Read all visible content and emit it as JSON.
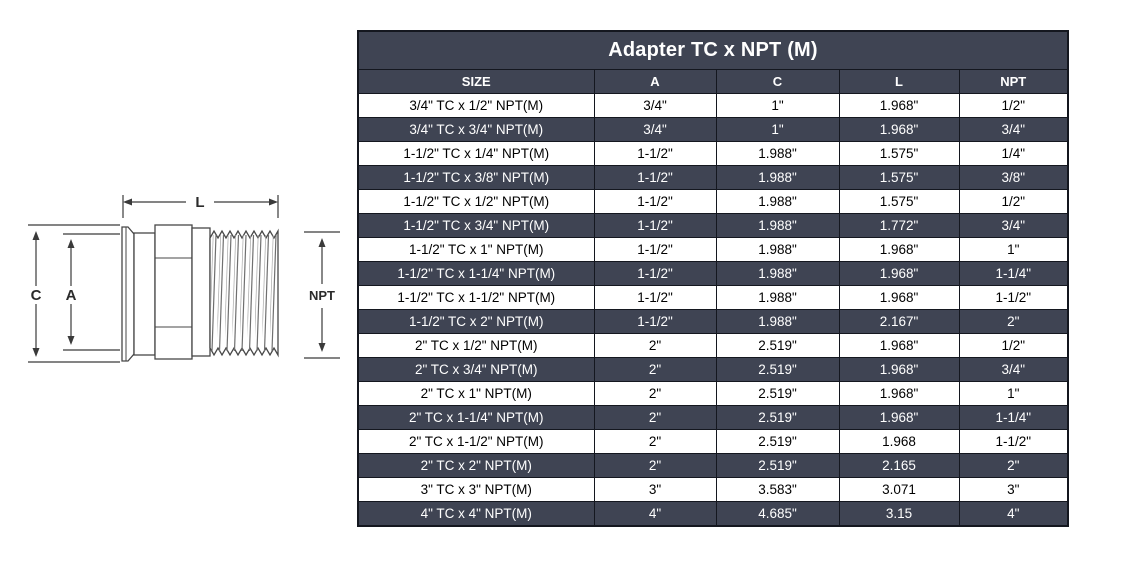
{
  "title": "Adapter TC x NPT (M)",
  "diagram": {
    "labels": {
      "length": "L",
      "clamp_od": "C",
      "tube_id": "A",
      "thread": "NPT"
    }
  },
  "table": {
    "columns": [
      "SIZE",
      "A",
      "C",
      "L",
      "NPT"
    ],
    "rows": [
      [
        "3/4\" TC x 1/2\" NPT(M)",
        "3/4\"",
        "1\"",
        "1.968\"",
        "1/2\""
      ],
      [
        "3/4\" TC x 3/4\" NPT(M)",
        "3/4\"",
        "1\"",
        "1.968\"",
        "3/4\""
      ],
      [
        "1-1/2\" TC x 1/4\" NPT(M)",
        "1-1/2\"",
        "1.988\"",
        "1.575\"",
        "1/4\""
      ],
      [
        "1-1/2\" TC x 3/8\" NPT(M)",
        "1-1/2\"",
        "1.988\"",
        "1.575\"",
        "3/8\""
      ],
      [
        "1-1/2\" TC x 1/2\" NPT(M)",
        "1-1/2\"",
        "1.988\"",
        "1.575\"",
        "1/2\""
      ],
      [
        "1-1/2\" TC x 3/4\" NPT(M)",
        "1-1/2\"",
        "1.988\"",
        "1.772\"",
        "3/4\""
      ],
      [
        "1-1/2\" TC x 1\" NPT(M)",
        "1-1/2\"",
        "1.988\"",
        "1.968\"",
        "1\""
      ],
      [
        "1-1/2\" TC x 1-1/4\" NPT(M)",
        "1-1/2\"",
        "1.988\"",
        "1.968\"",
        "1-1/4\""
      ],
      [
        "1-1/2\" TC x 1-1/2\" NPT(M)",
        "1-1/2\"",
        "1.988\"",
        "1.968\"",
        "1-1/2\""
      ],
      [
        "1-1/2\" TC x 2\" NPT(M)",
        "1-1/2\"",
        "1.988\"",
        "2.167\"",
        "2\""
      ],
      [
        "2\" TC x 1/2\" NPT(M)",
        "2\"",
        "2.519\"",
        "1.968\"",
        "1/2\""
      ],
      [
        "2\" TC x 3/4\" NPT(M)",
        "2\"",
        "2.519\"",
        "1.968\"",
        "3/4\""
      ],
      [
        "2\" TC x 1\" NPT(M)",
        "2\"",
        "2.519\"",
        "1.968\"",
        "1\""
      ],
      [
        "2\" TC x 1-1/4\" NPT(M)",
        "2\"",
        "2.519\"",
        "1.968\"",
        "1-1/4\""
      ],
      [
        "2\" TC x 1-1/2\" NPT(M)",
        "2\"",
        "2.519\"",
        "1.968",
        "1-1/2\""
      ],
      [
        "2\" TC x 2\" NPT(M)",
        "2\"",
        "2.519\"",
        "2.165",
        "2\""
      ],
      [
        "3\" TC x 3\" NPT(M)",
        "3\"",
        "3.583\"",
        "3.071",
        "3\""
      ],
      [
        "4\" TC x 4\" NPT(M)",
        "4\"",
        "4.685\"",
        "3.15",
        "4\""
      ]
    ]
  },
  "colors": {
    "header_bg": "#3f4453",
    "row_alt_bg": "#3f4453",
    "row_bg": "#ffffff",
    "header_text": "#ffffff",
    "row_text": "#000000",
    "border": "#14171f"
  }
}
